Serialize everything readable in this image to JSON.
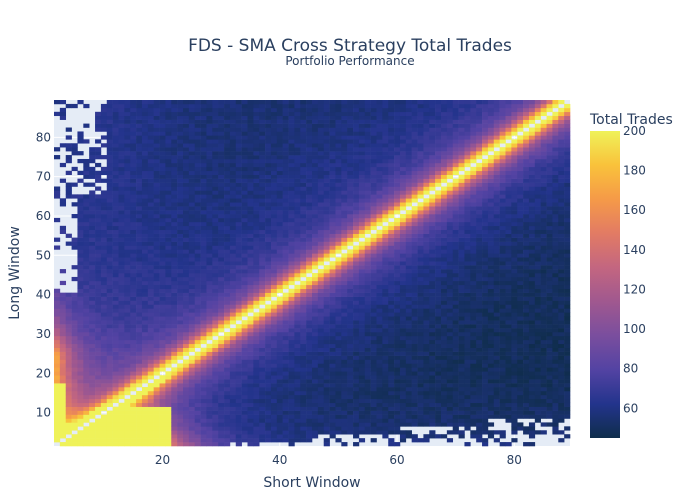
{
  "chart_data": {
    "type": "heatmap",
    "title": "FDS - SMA Cross Strategy Total Trades",
    "subtitle": "Portfolio Performance",
    "xlabel": "Short Window",
    "ylabel": "Long Window",
    "xlim": [
      2,
      89
    ],
    "ylim": [
      2,
      89
    ],
    "x_ticks": [
      20,
      40,
      60,
      80
    ],
    "y_ticks": [
      10,
      20,
      30,
      40,
      50,
      60,
      70,
      80
    ],
    "colorbar": {
      "title": "Total Trades",
      "min": 45,
      "max": 200,
      "ticks": [
        60,
        80,
        100,
        120,
        140,
        160,
        180,
        200
      ],
      "colorscale": [
        "#0d0887",
        "#46039f",
        "#7201a8",
        "#9c179e",
        "#bd3786",
        "#d8576b",
        "#ed7953",
        "#fb9f3a",
        "#fdca26",
        "#f0f921"
      ],
      "display_colors": [
        "#0f2d4b",
        "#23348c",
        "#5343a3",
        "#7a4e9e",
        "#a0588f",
        "#c36680",
        "#e27b64",
        "#f59a48",
        "#f9c23b",
        "#eff259"
      ]
    },
    "model": {
      "description": "Total trades vs. short/long SMA window. Values are highest where short≈long (diagonal ridge ≈200) and on the bottom-left where windows are small; the region where long<short is sparse (empty cells) far from the diagonal.",
      "diagonal_peak": 200,
      "diagonal_gap_color": "#e5ecf6",
      "far_upper_value": 55,
      "far_lower_value": 50
    },
    "colors": {
      "plot_bg": "#e5ecf6",
      "grid": "#ffffff",
      "text": "#2a3f5f"
    }
  }
}
